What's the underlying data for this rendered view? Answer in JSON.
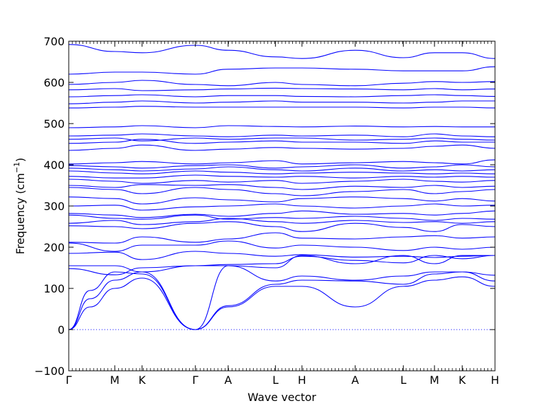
{
  "chart_data": {
    "type": "line",
    "xlabel": "Wave vector",
    "ylabel": "Frequency (cm",
    "ylabel_sup": "−1",
    "ylabel_close": ")",
    "ylim": [
      -100,
      700
    ],
    "yticks": [
      -100,
      0,
      100,
      200,
      300,
      400,
      500,
      600,
      700
    ],
    "xlim": [
      0,
      1
    ],
    "high_symmetry_points": [
      {
        "label": "Γ",
        "x": 0.0
      },
      {
        "label": "M",
        "x": 0.108
      },
      {
        "label": "K",
        "x": 0.172
      },
      {
        "label": "Γ",
        "x": 0.297
      },
      {
        "label": "A",
        "x": 0.374
      },
      {
        "label": "L",
        "x": 0.485
      },
      {
        "label": "H",
        "x": 0.547
      },
      {
        "label": "A",
        "x": 0.672
      },
      {
        "label": "L",
        "x": 0.785
      },
      {
        "label": "M",
        "x": 0.858
      },
      {
        "label": "K",
        "x": 0.923
      },
      {
        "label": "H",
        "x": 1.0
      }
    ],
    "zero_line": {
      "y": 0,
      "style": "dotted",
      "color": "#0000ff"
    },
    "line_color": "#0000ff",
    "series": [
      {
        "x": [
          0,
          0.05,
          0.108,
          0.172,
          0.297,
          0.374,
          0.485,
          0.547,
          0.672,
          0.785,
          0.858,
          0.923,
          1.0
        ],
        "y": [
          0,
          55,
          100,
          125,
          0,
          55,
          105,
          105,
          55,
          105,
          120,
          128,
          105
        ]
      },
      {
        "x": [
          0,
          0.05,
          0.108,
          0.172,
          0.297,
          0.374,
          0.485,
          0.547,
          0.672,
          0.785,
          0.858,
          0.923,
          1.0
        ],
        "y": [
          0,
          75,
          120,
          140,
          0,
          58,
          110,
          120,
          118,
          110,
          135,
          140,
          118
        ]
      },
      {
        "x": [
          0,
          0.05,
          0.108,
          0.172,
          0.297,
          0.374,
          0.485,
          0.547,
          0.672,
          0.785,
          0.858,
          0.923,
          1.0
        ],
        "y": [
          0,
          95,
          140,
          135,
          0,
          155,
          118,
          130,
          120,
          130,
          140,
          140,
          132
        ]
      },
      {
        "x": [
          0,
          0.108,
          0.172,
          0.297,
          0.374,
          0.485,
          0.547,
          0.672,
          0.785,
          0.858,
          0.923,
          1.0
        ],
        "y": [
          148,
          133,
          150,
          155,
          155,
          150,
          180,
          160,
          180,
          160,
          180,
          180
        ]
      },
      {
        "x": [
          0,
          0.108,
          0.172,
          0.297,
          0.374,
          0.485,
          0.547,
          0.672,
          0.785,
          0.858,
          0.923,
          1.0
        ],
        "y": [
          155,
          155,
          140,
          155,
          158,
          160,
          178,
          168,
          162,
          180,
          172,
          180
        ]
      },
      {
        "x": [
          0,
          0.108,
          0.172,
          0.297,
          0.374,
          0.485,
          0.547,
          0.672,
          0.785,
          0.858,
          0.923,
          1.0
        ],
        "y": [
          185,
          188,
          170,
          190,
          185,
          178,
          182,
          176,
          178,
          175,
          178,
          180
        ]
      },
      {
        "x": [
          0,
          0.108,
          0.172,
          0.297,
          0.374,
          0.485,
          0.547,
          0.672,
          0.785,
          0.858,
          0.923,
          1.0
        ],
        "y": [
          210,
          190,
          205,
          205,
          215,
          198,
          205,
          200,
          192,
          200,
          195,
          200
        ]
      },
      {
        "x": [
          0,
          0.108,
          0.172,
          0.297,
          0.374,
          0.485,
          0.547,
          0.672,
          0.785,
          0.858,
          0.923,
          1.0
        ],
        "y": [
          212,
          210,
          225,
          212,
          220,
          235,
          222,
          220,
          225,
          228,
          222,
          225
        ]
      },
      {
        "x": [
          0,
          0.108,
          0.172,
          0.297,
          0.374,
          0.485,
          0.547,
          0.672,
          0.785,
          0.858,
          0.923,
          1.0
        ],
        "y": [
          252,
          250,
          245,
          258,
          262,
          250,
          238,
          258,
          248,
          238,
          255,
          250
        ]
      },
      {
        "x": [
          0,
          0.108,
          0.172,
          0.297,
          0.374,
          0.485,
          0.547,
          0.672,
          0.785,
          0.858,
          0.923,
          1.0
        ],
        "y": [
          258,
          265,
          255,
          262,
          270,
          262,
          258,
          265,
          260,
          262,
          258,
          262
        ]
      },
      {
        "x": [
          0,
          0.108,
          0.172,
          0.297,
          0.374,
          0.485,
          0.547,
          0.672,
          0.785,
          0.858,
          0.923,
          1.0
        ],
        "y": [
          278,
          270,
          268,
          278,
          268,
          272,
          270,
          275,
          270,
          265,
          270,
          268
        ]
      },
      {
        "x": [
          0,
          0.108,
          0.172,
          0.297,
          0.374,
          0.485,
          0.547,
          0.672,
          0.785,
          0.858,
          0.923,
          1.0
        ],
        "y": [
          282,
          278,
          272,
          280,
          275,
          282,
          288,
          280,
          282,
          278,
          282,
          288
        ]
      },
      {
        "x": [
          0,
          0.108,
          0.172,
          0.297,
          0.374,
          0.485,
          0.547,
          0.672,
          0.785,
          0.858,
          0.923,
          1.0
        ],
        "y": [
          300,
          302,
          290,
          298,
          300,
          305,
          300,
          295,
          300,
          305,
          300,
          302
        ]
      },
      {
        "x": [
          0,
          0.108,
          0.172,
          0.297,
          0.374,
          0.485,
          0.547,
          0.672,
          0.785,
          0.858,
          0.923,
          1.0
        ],
        "y": [
          322,
          318,
          305,
          320,
          315,
          310,
          318,
          322,
          318,
          312,
          318,
          312
        ]
      },
      {
        "x": [
          0,
          0.108,
          0.172,
          0.297,
          0.374,
          0.485,
          0.547,
          0.672,
          0.785,
          0.858,
          0.923,
          1.0
        ],
        "y": [
          345,
          340,
          330,
          345,
          340,
          330,
          325,
          335,
          340,
          330,
          335,
          340
        ]
      },
      {
        "x": [
          0,
          0.108,
          0.172,
          0.297,
          0.374,
          0.485,
          0.547,
          0.672,
          0.785,
          0.858,
          0.923,
          1.0
        ],
        "y": [
          350,
          345,
          352,
          350,
          352,
          345,
          340,
          348,
          345,
          350,
          345,
          348
        ]
      },
      {
        "x": [
          0,
          0.108,
          0.172,
          0.297,
          0.374,
          0.485,
          0.547,
          0.672,
          0.785,
          0.858,
          0.923,
          1.0
        ],
        "y": [
          365,
          360,
          355,
          362,
          358,
          362,
          355,
          360,
          365,
          360,
          358,
          362
        ]
      },
      {
        "x": [
          0,
          0.108,
          0.172,
          0.297,
          0.374,
          0.485,
          0.547,
          0.672,
          0.785,
          0.858,
          0.923,
          1.0
        ],
        "y": [
          372,
          368,
          368,
          375,
          372,
          370,
          372,
          368,
          372,
          370,
          372,
          370
        ]
      },
      {
        "x": [
          0,
          0.108,
          0.172,
          0.297,
          0.374,
          0.485,
          0.547,
          0.672,
          0.785,
          0.858,
          0.923,
          1.0
        ],
        "y": [
          385,
          380,
          378,
          385,
          382,
          378,
          380,
          382,
          380,
          378,
          380,
          378
        ]
      },
      {
        "x": [
          0,
          0.108,
          0.172,
          0.297,
          0.374,
          0.485,
          0.547,
          0.672,
          0.785,
          0.858,
          0.923,
          1.0
        ],
        "y": [
          392,
          388,
          385,
          390,
          395,
          388,
          385,
          392,
          385,
          388,
          385,
          388
        ]
      },
      {
        "x": [
          0,
          0.108,
          0.172,
          0.297,
          0.374,
          0.485,
          0.547,
          0.672,
          0.785,
          0.858,
          0.923,
          1.0
        ],
        "y": [
          398,
          395,
          392,
          398,
          400,
          392,
          395,
          400,
          392,
          395,
          400,
          395
        ]
      },
      {
        "x": [
          0,
          0.108,
          0.172,
          0.297,
          0.374,
          0.485,
          0.547,
          0.672,
          0.785,
          0.858,
          0.923,
          1.0
        ],
        "y": [
          402,
          405,
          408,
          402,
          405,
          410,
          402,
          405,
          408,
          405,
          402,
          412
        ]
      },
      {
        "x": [
          0,
          0.108,
          0.172,
          0.297,
          0.374,
          0.485,
          0.547,
          0.672,
          0.785,
          0.858,
          0.923,
          1.0
        ],
        "y": [
          435,
          440,
          448,
          435,
          438,
          442,
          440,
          438,
          440,
          445,
          448,
          440
        ]
      },
      {
        "x": [
          0,
          0.108,
          0.172,
          0.297,
          0.374,
          0.485,
          0.547,
          0.672,
          0.785,
          0.858,
          0.923,
          1.0
        ],
        "y": [
          452,
          455,
          462,
          452,
          455,
          458,
          455,
          455,
          452,
          458,
          455,
          455
        ]
      },
      {
        "x": [
          0,
          0.108,
          0.172,
          0.297,
          0.374,
          0.485,
          0.547,
          0.672,
          0.785,
          0.858,
          0.923,
          1.0
        ],
        "y": [
          462,
          465,
          458,
          465,
          462,
          465,
          465,
          460,
          462,
          465,
          462,
          460
        ]
      },
      {
        "x": [
          0,
          0.108,
          0.172,
          0.297,
          0.374,
          0.485,
          0.547,
          0.672,
          0.785,
          0.858,
          0.923,
          1.0
        ],
        "y": [
          470,
          472,
          475,
          470,
          468,
          472,
          470,
          472,
          468,
          475,
          470,
          468
        ]
      },
      {
        "x": [
          0,
          0.108,
          0.172,
          0.297,
          0.374,
          0.485,
          0.547,
          0.672,
          0.785,
          0.858,
          0.923,
          1.0
        ],
        "y": [
          490,
          492,
          495,
          490,
          495,
          493,
          492,
          494,
          492,
          493,
          492,
          492
        ]
      },
      {
        "x": [
          0,
          0.108,
          0.172,
          0.297,
          0.374,
          0.485,
          0.547,
          0.672,
          0.785,
          0.858,
          0.923,
          1.0
        ],
        "y": [
          538,
          540,
          542,
          540,
          540,
          540,
          540,
          540,
          538,
          540,
          540,
          538
        ]
      },
      {
        "x": [
          0,
          0.108,
          0.172,
          0.297,
          0.374,
          0.485,
          0.547,
          0.672,
          0.785,
          0.858,
          0.923,
          1.0
        ],
        "y": [
          548,
          552,
          555,
          550,
          552,
          555,
          552,
          552,
          550,
          552,
          555,
          555
        ]
      },
      {
        "x": [
          0,
          0.108,
          0.172,
          0.297,
          0.374,
          0.485,
          0.547,
          0.672,
          0.785,
          0.858,
          0.923,
          1.0
        ],
        "y": [
          565,
          568,
          570,
          565,
          568,
          568,
          566,
          565,
          568,
          570,
          568,
          566
        ]
      },
      {
        "x": [
          0,
          0.108,
          0.172,
          0.297,
          0.374,
          0.485,
          0.547,
          0.672,
          0.785,
          0.858,
          0.923,
          1.0
        ],
        "y": [
          582,
          585,
          580,
          582,
          584,
          586,
          585,
          584,
          582,
          585,
          582,
          584
        ]
      },
      {
        "x": [
          0,
          0.108,
          0.172,
          0.297,
          0.374,
          0.485,
          0.547,
          0.672,
          0.785,
          0.858,
          0.923,
          1.0
        ],
        "y": [
          595,
          600,
          605,
          595,
          592,
          600,
          595,
          592,
          598,
          602,
          600,
          602
        ]
      },
      {
        "x": [
          0,
          0.108,
          0.172,
          0.297,
          0.374,
          0.485,
          0.547,
          0.672,
          0.785,
          0.858,
          0.923,
          1.0
        ],
        "y": [
          620,
          625,
          625,
          620,
          632,
          635,
          635,
          632,
          628,
          628,
          628,
          638
        ]
      },
      {
        "x": [
          0,
          0.108,
          0.172,
          0.297,
          0.374,
          0.485,
          0.547,
          0.672,
          0.785,
          0.858,
          0.923,
          1.0
        ],
        "y": [
          692,
          675,
          672,
          690,
          678,
          662,
          658,
          678,
          660,
          672,
          672,
          658
        ]
      }
    ]
  }
}
